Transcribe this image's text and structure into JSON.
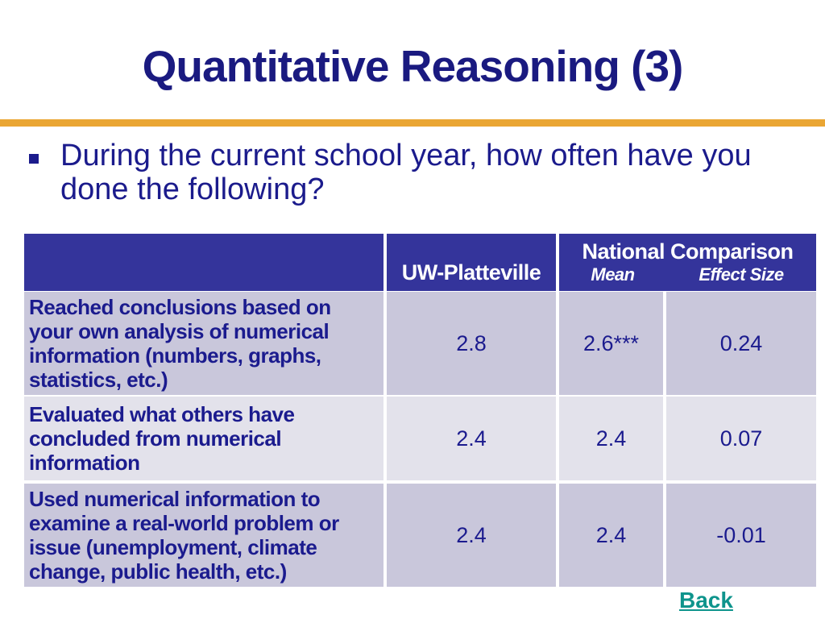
{
  "slide": {
    "title": "Quantitative Reasoning (3)",
    "bullet_text": "During the current school year, how often have you done the following?",
    "back_label": "Back"
  },
  "table": {
    "corner_label": "",
    "col2_header": "UW-Platteville",
    "group_header": "National Comparison",
    "sub_headers": {
      "mean": "Mean",
      "effect_size": "Effect Size"
    },
    "rows": [
      {
        "label": "Reached conclusions based on your own analysis of numerical information (numbers, graphs, statistics, etc.)",
        "values": [
          "2.8",
          "2.6***",
          "0.24"
        ]
      },
      {
        "label": "Evaluated what others have concluded from numerical information",
        "values": [
          "2.4",
          "2.4",
          "0.07"
        ]
      },
      {
        "label": "Used numerical information to examine a real-world problem or issue (unemployment, climate change, public health, etc.)",
        "values": [
          "2.4",
          "2.4",
          "-0.01"
        ]
      }
    ]
  },
  "colors": {
    "title_navy": "#1a1a80",
    "text_navy": "#1b1b8c",
    "header_bg": "#34349b",
    "row_lavender": "#c9c7db",
    "row_light": "#e3e2eb",
    "gold_rule": "#eaa634",
    "back_link_teal": "#0e948c"
  }
}
